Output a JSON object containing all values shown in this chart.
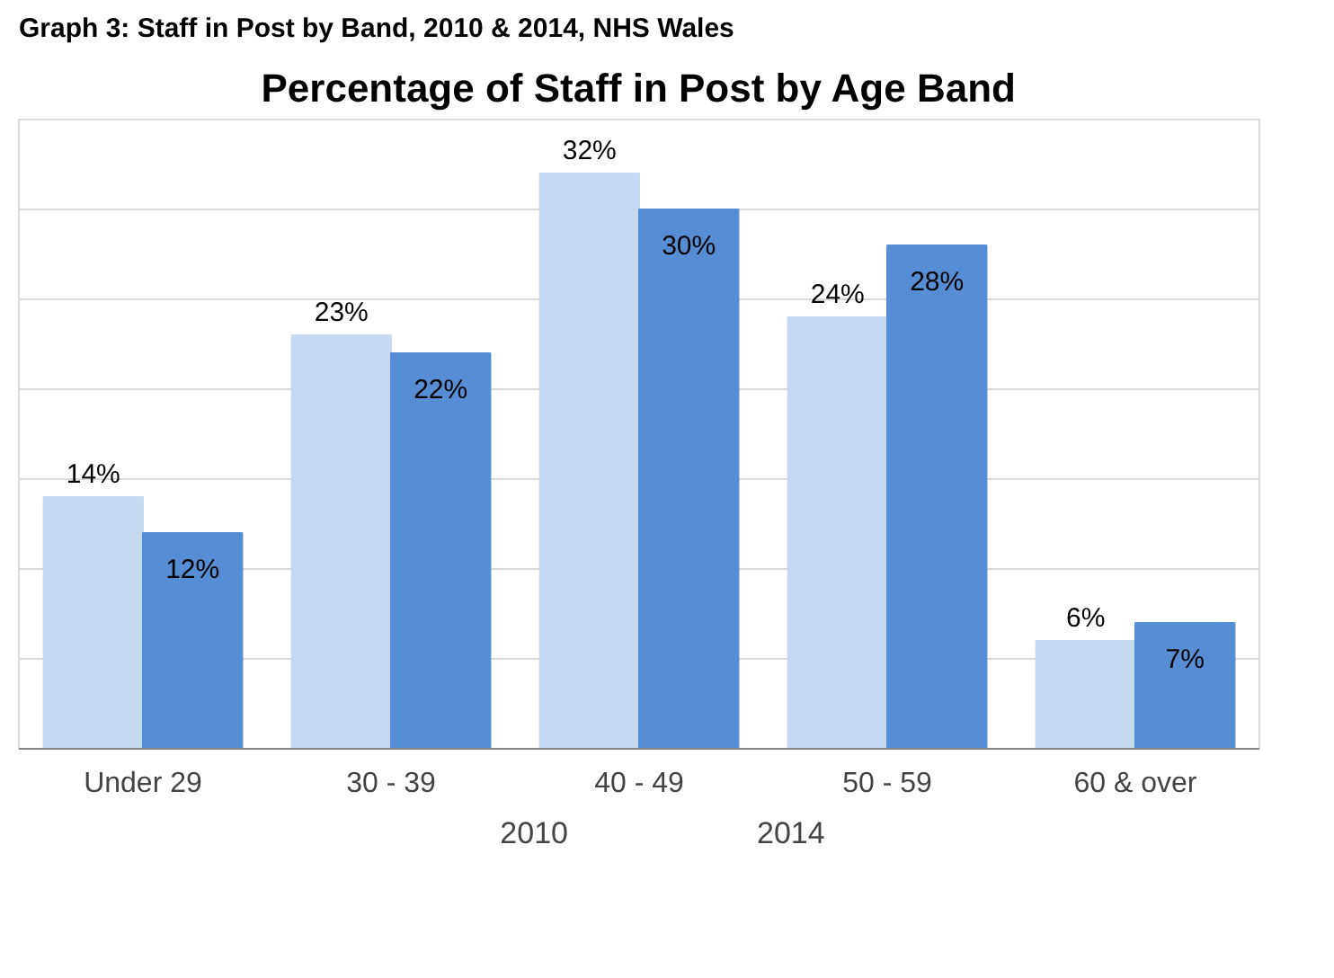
{
  "chart_data": {
    "type": "bar",
    "title": "Percentage of Staff in Post by Age Band",
    "annotations": [
      "Graph 3: Staff in Post by Band, 2010 & 2014, NHS Wales"
    ],
    "categories": [
      "Under 29",
      "30 - 39",
      "40 - 49",
      "50 - 59",
      "60 & over"
    ],
    "series": [
      {
        "name": "2010",
        "color": "#c6d9f1",
        "values": [
          14,
          23,
          32,
          24,
          6
        ],
        "value_labels": [
          "14%",
          "23%",
          "32%",
          "24%",
          "6%"
        ]
      },
      {
        "name": "2014",
        "color": "#558ed5",
        "values": [
          12,
          22,
          30,
          28,
          7
        ],
        "value_labels": [
          "12%",
          "22%",
          "30%",
          "28%",
          "7%"
        ]
      }
    ],
    "ylim": [
      0,
      35
    ],
    "yticks": [
      {
        "value": 0,
        "label": null
      },
      {
        "value": 5,
        "label": null
      },
      {
        "value": 10,
        "label": null
      },
      {
        "value": 15,
        "label": null
      },
      {
        "value": 20,
        "label": null
      },
      {
        "value": 25,
        "label": null
      },
      {
        "value": 30,
        "label": null
      },
      {
        "value": 35,
        "label": null
      }
    ],
    "grid": "y",
    "legend": "bottom",
    "tick_labels": "x"
  }
}
